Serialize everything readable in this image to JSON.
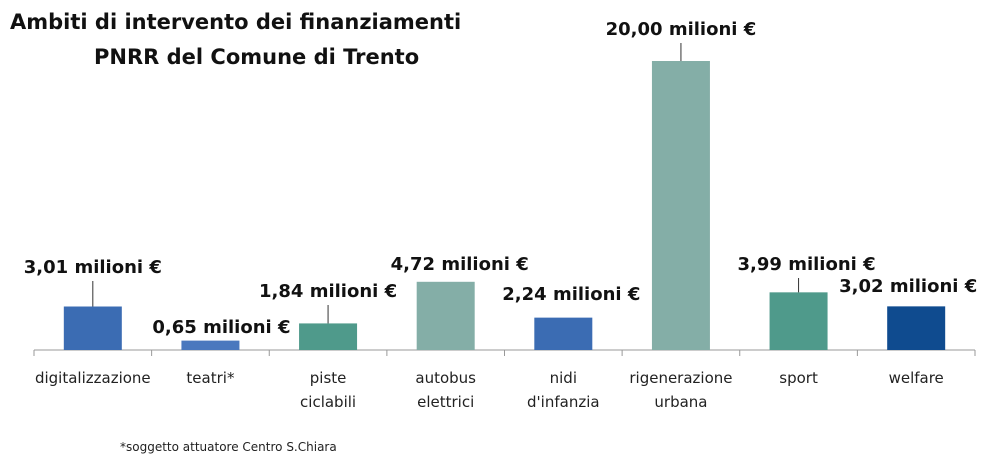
{
  "chart_data": {
    "type": "bar",
    "title": [
      "Ambiti di intervento dei finanziamenti",
      "PNRR del Comune di Trento"
    ],
    "categories": [
      "digitalizzazione",
      "teatri*",
      "piste\nciclabili",
      "autobus\nelettrici",
      "nidi\nd'infanzia",
      "rigenerazione\nurbana",
      "sport",
      "welfare"
    ],
    "values": [
      3.01,
      0.65,
      1.84,
      4.72,
      2.24,
      20.0,
      3.99,
      3.02
    ],
    "value_labels": [
      "3,01 milioni €",
      "0,65 milioni €",
      "1,84 milioni €",
      "4,72 milioni €",
      "2,24 milioni €",
      "20,00 milioni €",
      "3,99 milioni €",
      "3,02 milioni €"
    ],
    "colors": [
      "#3b6cb3",
      "#4a78be",
      "#4f9a8b",
      "#84aea7",
      "#3b6cb3",
      "#84aea7",
      "#4f9a8b",
      "#0f4b8f"
    ],
    "footnote": "*soggetto attuatore Centro S.Chiara"
  }
}
